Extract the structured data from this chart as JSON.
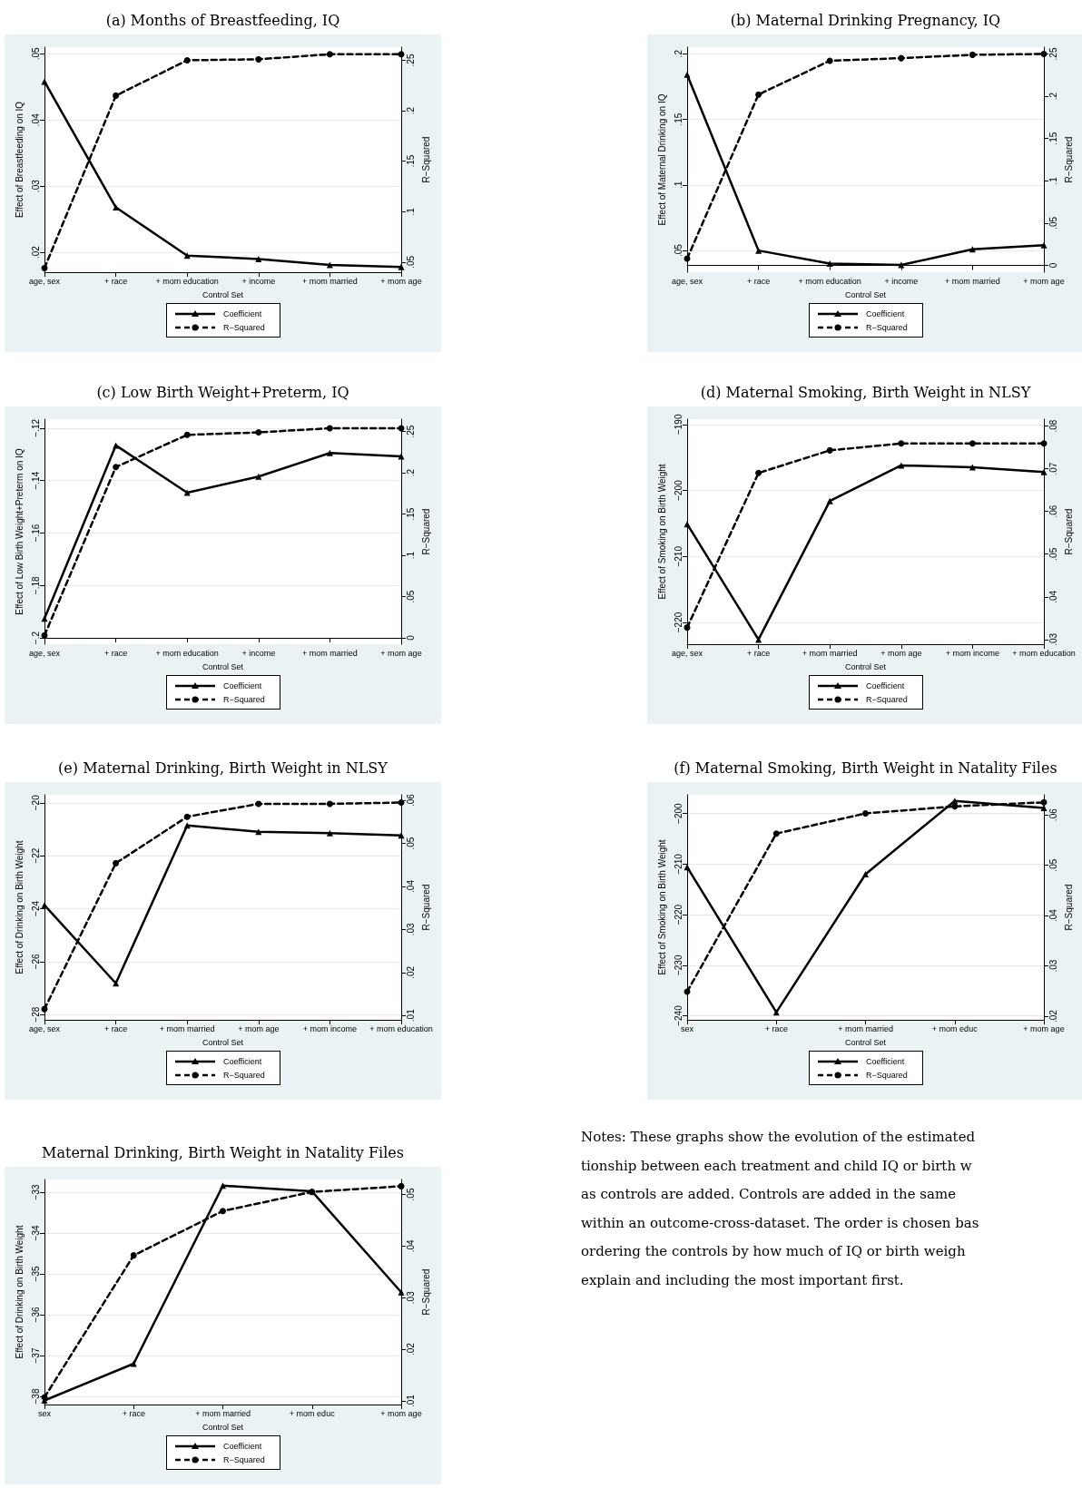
{
  "chart_data": [
    {
      "type": "line",
      "title": "(a) Months of Breastfeeding, IQ",
      "xlabel": "Control Set",
      "ylabel": "Effect of Breastfeeding on IQ",
      "y2label": "R−Squared",
      "categories": [
        "age, sex",
        "+ race",
        "+ mom education",
        "+ income",
        "+ mom married",
        "+ mom age"
      ],
      "series": [
        {
          "name": "Coefficient",
          "color": "#000000",
          "marker": "triangle",
          "line_style": "solid",
          "values": [
            0.0458,
            0.0268,
            0.0195,
            0.019,
            0.0181,
            0.0178
          ]
        },
        {
          "name": "R−Squared",
          "color": "#000000",
          "marker": "circle",
          "line_style": "dashed",
          "axis": "y2",
          "values": [
            0.044,
            0.215,
            0.25,
            0.251,
            0.256,
            0.256
          ]
        }
      ],
      "ylim": [
        0.017,
        0.051
      ],
      "yticks": [
        {
          "value": 0.02,
          "label": ".02"
        },
        {
          "value": 0.03,
          "label": ".03"
        },
        {
          "value": 0.04,
          "label": ".04"
        },
        {
          "value": 0.05,
          "label": ".05"
        }
      ],
      "y2lim": [
        0.04,
        0.263
      ],
      "y2ticks": [
        {
          "value": 0.05,
          "label": ".05"
        },
        {
          "value": 0.1,
          "label": ".1"
        },
        {
          "value": 0.15,
          "label": ".15"
        },
        {
          "value": 0.2,
          "label": ".2"
        },
        {
          "value": 0.25,
          "label": ".25"
        }
      ],
      "grid": "y",
      "legend": "bottom"
    },
    {
      "type": "line",
      "title": "(b) Maternal Drinking Pregnancy, IQ",
      "xlabel": "Control Set",
      "ylabel": "Effect of Maternal Drinking on IQ",
      "y2label": "R−Squared",
      "categories": [
        "age, sex",
        "+ race",
        "+ mom education",
        "+ income",
        "+ mom married",
        "+ mom age"
      ],
      "series": [
        {
          "name": "Coefficient",
          "color": "#000000",
          "marker": "triangle",
          "line_style": "solid",
          "values": [
            0.184,
            0.05,
            0.04,
            0.039,
            0.051,
            0.054
          ]
        },
        {
          "name": "R−Squared",
          "color": "#000000",
          "marker": "circle",
          "line_style": "dashed",
          "axis": "y2",
          "values": [
            0.008,
            0.202,
            0.242,
            0.245,
            0.249,
            0.25
          ]
        }
      ],
      "ylim": [
        0.0335,
        0.205
      ],
      "yticks": [
        {
          "value": 0.05,
          "label": ".05"
        },
        {
          "value": 0.1,
          "label": ".1"
        },
        {
          "value": 0.15,
          "label": ".15"
        },
        {
          "value": 0.2,
          "label": ".2"
        }
      ],
      "y2lim": [
        -0.008,
        0.258
      ],
      "y2ticks": [
        {
          "value": 0,
          "label": "0"
        },
        {
          "value": 0.05,
          "label": ".05"
        },
        {
          "value": 0.1,
          "label": ".1"
        },
        {
          "value": 0.15,
          "label": ".15"
        },
        {
          "value": 0.2,
          "label": ".2"
        },
        {
          "value": 0.25,
          "label": ".25"
        }
      ],
      "grid": "y",
      "legend": "bottom"
    },
    {
      "type": "line",
      "title": "(c) Low Birth Weight+Preterm, IQ",
      "xlabel": "Control Set",
      "ylabel": "Effect of Low Birth Weight+Preterm on IQ",
      "y2label": "R−Squared",
      "categories": [
        "age, sex",
        "+ race",
        "+ mom education",
        "+ income",
        "+ mom married",
        "+ mom age"
      ],
      "series": [
        {
          "name": "Coefficient",
          "color": "#000000",
          "marker": "triangle",
          "line_style": "solid",
          "values": [
            -0.1926,
            -0.1266,
            -0.1446,
            -0.1385,
            -0.1295,
            -0.1308
          ]
        },
        {
          "name": "R−Squared",
          "color": "#000000",
          "marker": "circle",
          "line_style": "dashed",
          "axis": "y2",
          "values": [
            0.003,
            0.207,
            0.246,
            0.249,
            0.254,
            0.254
          ]
        }
      ],
      "ylim": [
        -0.2024,
        -0.1166
      ],
      "yticks": [
        {
          "value": -0.2,
          "label": "−.2"
        },
        {
          "value": -0.18,
          "label": "−.18"
        },
        {
          "value": -0.16,
          "label": "−.16"
        },
        {
          "value": -0.14,
          "label": "−.14"
        },
        {
          "value": -0.12,
          "label": "−.12"
        }
      ],
      "y2lim": [
        -0.0076,
        0.265
      ],
      "y2ticks": [
        {
          "value": 0,
          "label": "0"
        },
        {
          "value": 0.05,
          "label": ".05"
        },
        {
          "value": 0.1,
          "label": ".1"
        },
        {
          "value": 0.15,
          "label": ".15"
        },
        {
          "value": 0.2,
          "label": ".2"
        },
        {
          "value": 0.25,
          "label": ".25"
        }
      ],
      "grid": "y",
      "legend": "bottom"
    },
    {
      "type": "line",
      "title": "(d) Maternal Smoking, Birth Weight in NLSY",
      "xlabel": "Control Set",
      "ylabel": "Effect of Smoking on Birth Weight",
      "y2label": "R−Squared",
      "categories": [
        "age, sex",
        "+ race",
        "+ mom married",
        "+ mom age",
        "+ mom income",
        "+ mom education"
      ],
      "series": [
        {
          "name": "Coefficient",
          "color": "#000000",
          "marker": "triangle",
          "line_style": "solid",
          "values": [
            -205.1,
            -222.6,
            -201.6,
            -196.2,
            -196.5,
            -197.2
          ]
        },
        {
          "name": "R−Squared",
          "color": "#000000",
          "marker": "circle",
          "line_style": "dashed",
          "axis": "y2",
          "values": [
            0.0328,
            0.069,
            0.0743,
            0.0759,
            0.0759,
            0.0759
          ]
        }
      ],
      "ylim": [
        -223.3,
        -189.2
      ],
      "yticks": [
        {
          "value": -220,
          "label": "−220"
        },
        {
          "value": -210,
          "label": "−210"
        },
        {
          "value": -200,
          "label": "−200"
        },
        {
          "value": -190,
          "label": "−190"
        }
      ],
      "y2lim": [
        0.0289,
        0.0816
      ],
      "y2ticks": [
        {
          "value": 0.03,
          "label": ".03"
        },
        {
          "value": 0.04,
          "label": ".04"
        },
        {
          "value": 0.05,
          "label": ".05"
        },
        {
          "value": 0.06,
          "label": ".06"
        },
        {
          "value": 0.07,
          "label": ".07"
        },
        {
          "value": 0.08,
          "label": ".08"
        }
      ],
      "grid": "y",
      "legend": "bottom"
    },
    {
      "type": "line",
      "title": "(e) Maternal Drinking, Birth Weight in NLSY",
      "xlabel": "Control Set",
      "ylabel": "Effect of Drinking on Birth Weight",
      "y2label": "R−Squared",
      "categories": [
        "age, sex",
        "+ race",
        "+ mom married",
        "+ mom age",
        "+ mom income",
        "+ mom education"
      ],
      "series": [
        {
          "name": "Coefficient",
          "color": "#000000",
          "marker": "triangle",
          "line_style": "solid",
          "values": [
            -23.87,
            -26.82,
            -20.86,
            -21.1,
            -21.15,
            -21.23
          ]
        },
        {
          "name": "R−Squared",
          "color": "#000000",
          "marker": "circle",
          "line_style": "dashed",
          "axis": "y2",
          "values": [
            0.0115,
            0.0454,
            0.0562,
            0.0592,
            0.0592,
            0.0595
          ]
        }
      ],
      "ylim": [
        -28.2,
        -19.7
      ],
      "yticks": [
        {
          "value": -28,
          "label": "−28"
        },
        {
          "value": -26,
          "label": "−26"
        },
        {
          "value": -24,
          "label": "−24"
        },
        {
          "value": -22,
          "label": "−22"
        },
        {
          "value": -20,
          "label": "−20"
        }
      ],
      "y2lim": [
        0.009,
        0.0613
      ],
      "y2ticks": [
        {
          "value": 0.01,
          "label": ".01"
        },
        {
          "value": 0.02,
          "label": ".02"
        },
        {
          "value": 0.03,
          "label": ".03"
        },
        {
          "value": 0.04,
          "label": ".04"
        },
        {
          "value": 0.05,
          "label": ".05"
        },
        {
          "value": 0.06,
          "label": ".06"
        }
      ],
      "grid": "y",
      "legend": "bottom"
    },
    {
      "type": "line",
      "title": "(f) Maternal Smoking, Birth Weight in Natality Files",
      "xlabel": "Control Set",
      "ylabel": "Effect of Smoking on Birth Weight",
      "y2label": "R−Squared",
      "categories": [
        "sex",
        "+ race",
        "+ mom married",
        "+ mom educ",
        "+ mom age"
      ],
      "series": [
        {
          "name": "Coefficient",
          "color": "#000000",
          "marker": "triangle",
          "line_style": "solid",
          "values": [
            -210.6,
            -239.3,
            -212.0,
            -197.5,
            -198.9
          ]
        },
        {
          "name": "R−Squared",
          "color": "#000000",
          "marker": "circle",
          "line_style": "dashed",
          "axis": "y2",
          "values": [
            0.0249,
            0.0563,
            0.0603,
            0.0617,
            0.0625
          ]
        }
      ],
      "ylim": [
        -240.8,
        -196.3
      ],
      "yticks": [
        {
          "value": -240,
          "label": "−240"
        },
        {
          "value": -230,
          "label": "−230"
        },
        {
          "value": -220,
          "label": "−220"
        },
        {
          "value": -210,
          "label": "−210"
        },
        {
          "value": -200,
          "label": "−200"
        }
      ],
      "y2lim": [
        0.0193,
        0.064
      ],
      "y2ticks": [
        {
          "value": 0.02,
          "label": ".02"
        },
        {
          "value": 0.03,
          "label": ".03"
        },
        {
          "value": 0.04,
          "label": ".04"
        },
        {
          "value": 0.05,
          "label": ".05"
        },
        {
          "value": 0.06,
          "label": ".06"
        }
      ],
      "grid": "y",
      "legend": "bottom"
    },
    {
      "type": "line",
      "title": "Maternal Drinking, Birth Weight in Natality Files",
      "xlabel": "Control Set",
      "ylabel": "Effect of Drinking on Birth Weight",
      "y2label": "R−Squared",
      "categories": [
        "sex",
        "+ race",
        "+ mom married",
        "+ mom educ",
        "+ mom age"
      ],
      "series": [
        {
          "name": "Coefficient",
          "color": "#000000",
          "marker": "triangle",
          "line_style": "solid",
          "values": [
            -38.1,
            -37.2,
            -32.84,
            -32.98,
            -35.45
          ]
        },
        {
          "name": "R−Squared",
          "color": "#000000",
          "marker": "circle",
          "line_style": "dashed",
          "axis": "y2",
          "values": [
            0.0107,
            0.0382,
            0.0468,
            0.0505,
            0.0516
          ]
        }
      ],
      "ylim": [
        -38.2,
        -32.69
      ],
      "yticks": [
        {
          "value": -38,
          "label": "−38"
        },
        {
          "value": -37,
          "label": "−37"
        },
        {
          "value": -36,
          "label": "−36"
        },
        {
          "value": -35,
          "label": "−35"
        },
        {
          "value": -34,
          "label": "−34"
        },
        {
          "value": -33,
          "label": "−33"
        }
      ],
      "y2lim": [
        0.0093,
        0.0529
      ],
      "y2ticks": [
        {
          "value": 0.01,
          "label": ".01"
        },
        {
          "value": 0.02,
          "label": ".02"
        },
        {
          "value": 0.03,
          "label": ".03"
        },
        {
          "value": 0.04,
          "label": ".04"
        },
        {
          "value": 0.05,
          "label": ".05"
        }
      ],
      "grid": "y",
      "legend": "bottom"
    },
    {
      "type": "other",
      "annotations": [
        "Notes: These graphs show the evolution of the estimated",
        "tionship between each treatment and child IQ or birth w",
        "as controls are added.  Controls are added in the same",
        "within an outcome-cross-dataset. The order is chosen bas",
        "ordering the controls by how much of IQ or birth weigh",
        "explain and including the most important first."
      ]
    }
  ]
}
